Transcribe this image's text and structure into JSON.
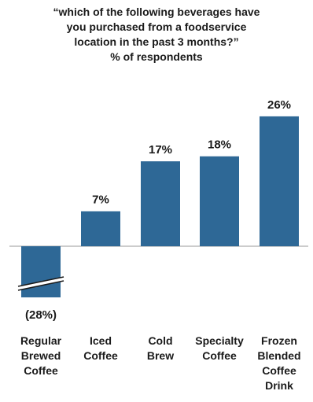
{
  "chart_data": {
    "type": "bar",
    "title_lines": [
      "“which of the following beverages have",
      "you purchased from a foodservice",
      "location in the past 3 months?”",
      "% of respondents"
    ],
    "categories": [
      [
        "Regular",
        "Brewed",
        "Coffee"
      ],
      [
        "Iced",
        "Coffee"
      ],
      [
        "Cold",
        "Brew"
      ],
      [
        "Specialty",
        "Coffee"
      ],
      [
        "Frozen",
        "Blended",
        "Coffee",
        "Drink"
      ]
    ],
    "values": [
      28,
      7,
      17,
      18,
      26
    ],
    "value_labels": [
      "(28%)",
      "7%",
      "17%",
      "18%",
      "26%"
    ],
    "negative_display": [
      true,
      false,
      false,
      false,
      false
    ],
    "broken_axis": [
      true,
      false,
      false,
      false,
      false
    ],
    "bar_color": "#2e6896",
    "baseline_color": "#999999",
    "grid": false,
    "legend": "none"
  }
}
